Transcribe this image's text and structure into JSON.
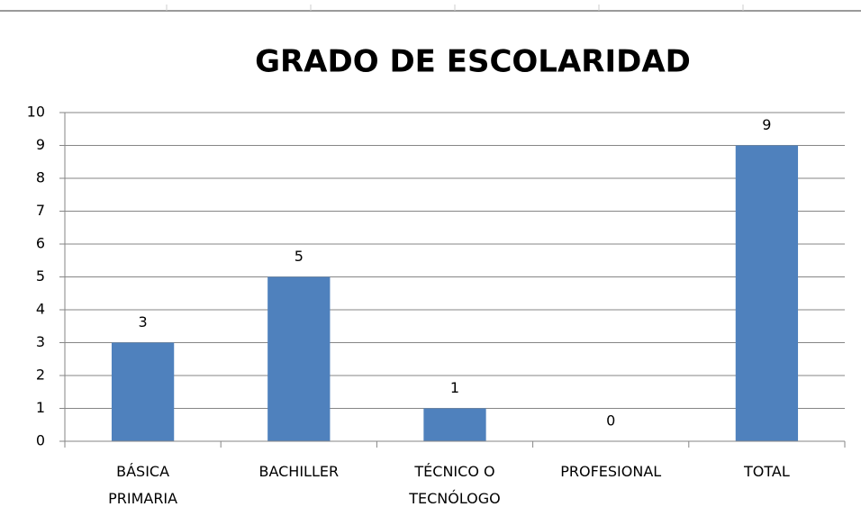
{
  "chart_data": {
    "type": "bar",
    "title": "GRADO DE ESCOLARIDAD",
    "categories": [
      "BÁSICA PRIMARIA",
      "BACHILLER",
      "TÉCNICO O TECNÓLOGO",
      "PROFESIONAL",
      "TOTAL"
    ],
    "values": [
      3,
      5,
      1,
      0,
      9
    ],
    "color": "#4f81bd",
    "ylim": [
      0,
      10
    ],
    "yticks": [
      0,
      1,
      2,
      3,
      4,
      5,
      6,
      7,
      8,
      9,
      10
    ],
    "grid": true
  }
}
